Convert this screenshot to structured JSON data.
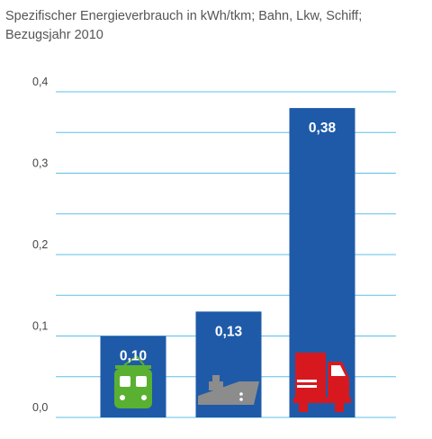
{
  "chart_data": {
    "type": "bar",
    "title": "Spezifischer Energieverbrauch in kWh/tkm; Bahn, Lkw, Schiff; Bezugsjahr 2010",
    "title_lines": [
      "Spezifischer Energieverbrauch in kWh/tkm; Bahn, Lkw, Schiff;",
      "Bezugsjahr 2010"
    ],
    "categories": [
      "Bahn",
      "Schiff",
      "Lkw"
    ],
    "values": [
      0.1,
      0.13,
      0.38
    ],
    "data_labels": [
      "0,10",
      "0,13",
      "0,38"
    ],
    "icons": [
      "train-icon",
      "ship-icon",
      "truck-icon"
    ],
    "ylim": [
      0,
      0.4
    ],
    "yticks": [
      {
        "value": 0.0,
        "label": "0,0"
      },
      {
        "value": 0.1,
        "label": "0,1"
      },
      {
        "value": 0.2,
        "label": "0,2"
      },
      {
        "value": 0.3,
        "label": "0,3"
      },
      {
        "value": 0.4,
        "label": "0,4"
      }
    ],
    "grid": true,
    "colors": {
      "bar": "#1e5aa8",
      "grid": "#5bc0e8",
      "train": "#5ab031",
      "ship": "#8c8c8c",
      "truck": "#d7191f"
    }
  }
}
